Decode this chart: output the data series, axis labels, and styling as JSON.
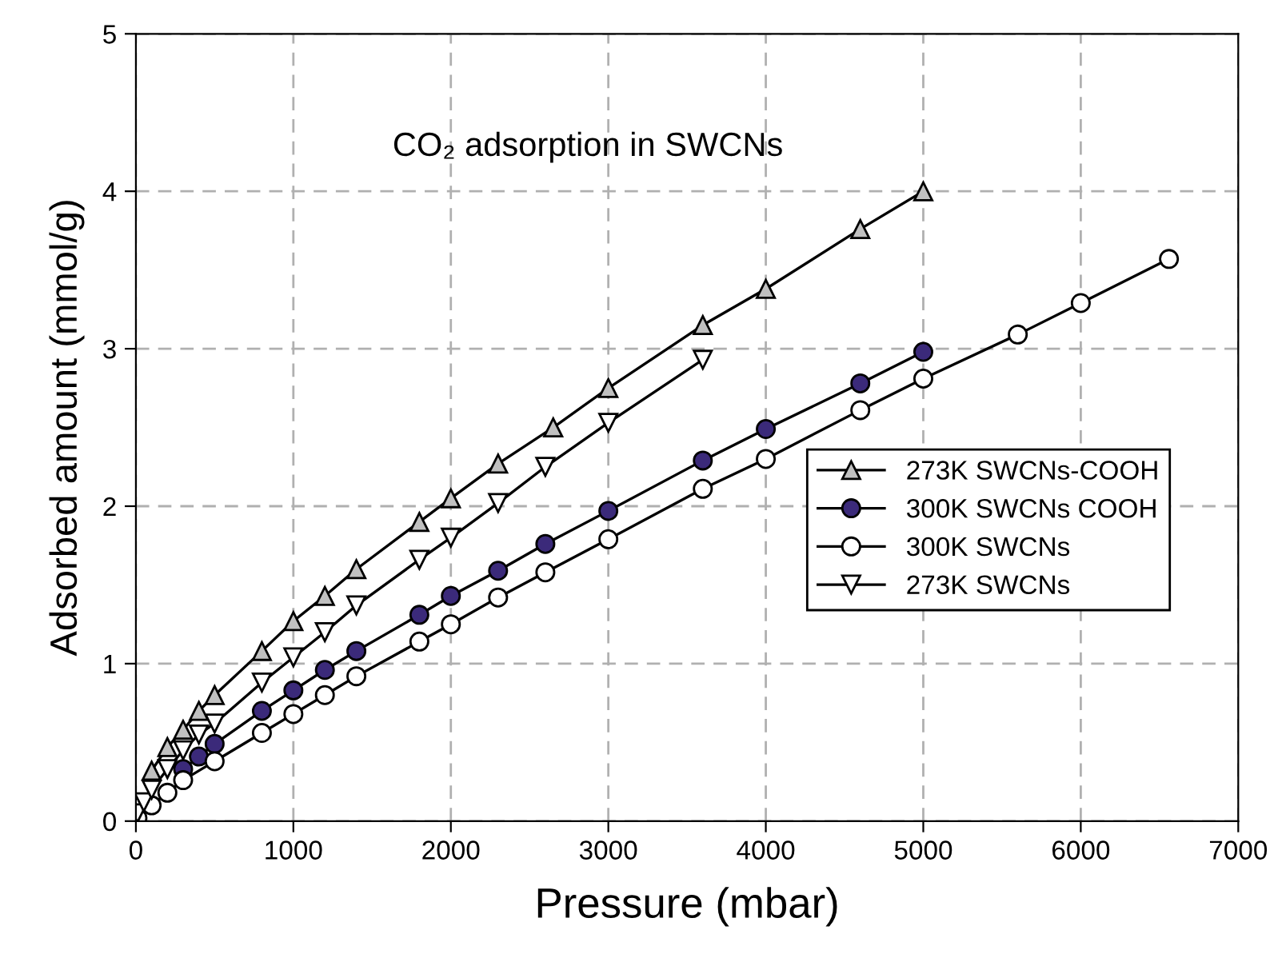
{
  "chart_data": {
    "type": "line",
    "title": "CO₂ adsorption in SWCNs",
    "xlabel": "Pressure (mbar)",
    "ylabel": "Adsorbed amount (mmol/g)",
    "xlim": [
      0,
      7000
    ],
    "xticks": [
      0,
      1000,
      2000,
      3000,
      4000,
      5000,
      6000,
      7000
    ],
    "ylim": [
      0,
      5
    ],
    "yticks": [
      0,
      1,
      2,
      3,
      4,
      5
    ],
    "grid": true,
    "legend": "right",
    "line_style": "solid",
    "series": [
      {
        "name": "273K SWCNs-COOH",
        "color": "#c0c0c0",
        "marker": "triangle",
        "x": [
          100,
          200,
          300,
          400,
          500,
          800,
          1000,
          1200,
          1400,
          1800,
          2000,
          2300,
          2650,
          3000,
          3600,
          4000,
          4600,
          5000
        ],
        "values": [
          0.32,
          0.47,
          0.58,
          0.7,
          0.8,
          1.08,
          1.27,
          1.43,
          1.6,
          1.9,
          2.05,
          2.27,
          2.5,
          2.75,
          3.15,
          3.38,
          3.76,
          4.0
        ]
      },
      {
        "name": "300K SWCNs COOH",
        "color": "#3b2a7a",
        "marker": "circle",
        "x": [
          300,
          400,
          500,
          800,
          1000,
          1200,
          1400,
          1800,
          2000,
          2300,
          2600,
          3000,
          3600,
          4000,
          4600,
          5000
        ],
        "values": [
          0.33,
          0.41,
          0.49,
          0.7,
          0.83,
          0.96,
          1.08,
          1.31,
          1.43,
          1.59,
          1.76,
          1.97,
          2.29,
          2.49,
          2.78,
          2.98
        ]
      },
      {
        "name": "300K SWCNs",
        "color": "#ffffff",
        "marker": "circle",
        "x": [
          10,
          100,
          200,
          300,
          500,
          800,
          1000,
          1200,
          1400,
          1800,
          2000,
          2300,
          2600,
          3000,
          3600,
          4000,
          4600,
          5000,
          5600,
          6000,
          6560
        ],
        "values": [
          0.02,
          0.1,
          0.18,
          0.26,
          0.38,
          0.56,
          0.68,
          0.8,
          0.92,
          1.14,
          1.25,
          1.42,
          1.58,
          1.79,
          2.11,
          2.3,
          2.61,
          2.81,
          3.09,
          3.29,
          3.57
        ]
      },
      {
        "name": "273K SWCNs",
        "color": "#ffffff",
        "marker": "triangle_down",
        "x": [
          10,
          50,
          100,
          200,
          300,
          400,
          500,
          800,
          1000,
          1200,
          1400,
          1800,
          2000,
          2300,
          2600,
          3000,
          3600
        ],
        "values": [
          0.05,
          0.12,
          0.2,
          0.33,
          0.45,
          0.55,
          0.62,
          0.88,
          1.04,
          1.2,
          1.37,
          1.66,
          1.8,
          2.02,
          2.25,
          2.53,
          2.93
        ]
      }
    ]
  }
}
